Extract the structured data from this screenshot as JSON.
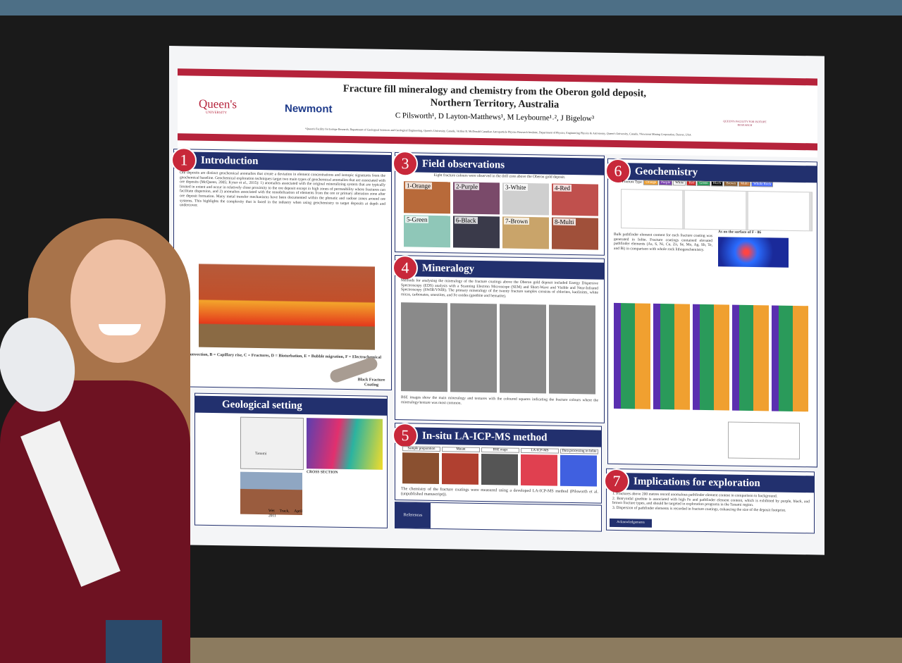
{
  "poster": {
    "title_line1": "Fracture fill mineralogy and chemistry from the Oberon gold deposit,",
    "title_line2": "Northern Territory, Australia",
    "authors": "C Pilsworth¹, D Layton-Matthews¹, M Leybourne¹˒², J Bigelow³",
    "affiliations": "¹Queen's Facility for Isotope Research, Department of Geological Sciences and Geological Engineering, Queen's University, Canada, ²Arthur B. McDonald Canadian Astroparticle Physics Research Institute, Department of Physics, Engineering Physics & Astronomy, Queen's University, Canada, ³Newmont Mining Corporation, Denver, USA",
    "logo_left": "Queen's",
    "logo_left_sub": "UNIVERSITY",
    "logo_mid": "Newmont",
    "logo_right": "QUEEN'S FACILITY FOR ISOTOPE RESEARCH"
  },
  "intro": {
    "number": "1",
    "heading": "Introduction",
    "text": "Ore deposits are distinct geochemical anomalies that create a deviation in element concentrations and isotopic signatures from the geochemical baseline. Geochemical exploration techniques target two main types of geochemical anomalies that are associated with ore deposits (McQueen, 2005; Kyser et al., 2015): 1) anomalies associated with the original mineralizing system that are typically limited in extent and occur in relatively close proximity to the ore deposit except in high zones of permeability where fractures can facilitate dispersion, and 2) anomalies associated with the remobilization of elements from the ore or primary alteration zone after ore deposit formation. Many metal transfer mechanisms have been documented within the phreatic and vadose zones around ore systems. This highlights the complexity that is faced in the industry when using geochemistry to target deposits at depth and undercover.",
    "figure_caption": "A = Convection, B = Capillary rise, C = Fractures, D = Bioturbation, E = Bubble migration, F = Electrochemical",
    "coating_label": "Black Fracture Coating"
  },
  "geology": {
    "heading": "Geological setting",
    "map_label": "Tanami",
    "photo_label": "Wet Track, April 2011",
    "section_label": "CROSS SECTION"
  },
  "field": {
    "number": "3",
    "heading": "Field observations",
    "caption": "Eight fracture colours were observed in the drill core above the Oberon gold deposit.",
    "samples": [
      "1-Orange",
      "2-Purple",
      "3-White",
      "4-Red",
      "5-Green",
      "6-Black",
      "7-Brown",
      "8-Multi"
    ]
  },
  "mineralogy": {
    "number": "4",
    "heading": "Mineralogy",
    "text": "Methods for analysing the mineralogy of the fracture coatings above the Oberon gold deposit included Energy Dispersive Spectroscopy (EDS) analysis with a Scanning Electron Microscope (SEM) and Short-Wave and Visible and Near-Infrared Spectroscopy (SWIR/VNIR). The primary mineralogy of the twenty fracture samples consists of chlorites, kaolinites, white micas, carbonates, smectites, and Fe oxides (goethite and hematite).",
    "caption": "BSE images show the main mineralogy and textures with the coloured squares indicating the fracture colours where the mineralogy/texture was most common."
  },
  "method": {
    "number": "5",
    "heading": "In-situ LA-ICP-MS method",
    "steps": [
      "Sample preparation",
      "Mount",
      "BSE maps",
      "LA-ICP-MS",
      "Data processing in Iolite"
    ],
    "caption": "The chemistry of the fracture coatings were measured using a developed LA-ICP-MS method (Pilsworth et al. (unpublished manuscript))."
  },
  "references": "References",
  "geochem": {
    "number": "6",
    "heading": "Geochemistry",
    "legend_title": "Fracture Type:",
    "types": [
      "Orange",
      "Purple",
      "White",
      "Red",
      "Green",
      "Black",
      "Brown",
      "Multi",
      "Whole Rock"
    ],
    "map_label": "As on the surface of F - 86",
    "text": "Bulk pathfinder element content for each fracture coating was generated in Iolite. Fracture coatings contained elevated pathfinder elements (As, S, Ni, Cu, Zn, Se, Mo, Ag, Sb, Te, and Bi) in comparison with whole rock lithogeochemistry."
  },
  "implications": {
    "number": "7",
    "heading": "Implications for exploration",
    "items": [
      "1. Fractures above 200 metres record anomalous pathfinder element content in comparison to background.",
      "2. Botryoidal goethite is associated with high Fe and pathfinder element content, which is exhibited by purple, black, and brown fracture types, and should be targeted in exploration programs in the Tanami region.",
      "3. Dispersion of pathfinder elements is recorded in fracture coatings, enhancing the size of the deposit footprint."
    ]
  },
  "acknowledgements": "Acknowledgements"
}
